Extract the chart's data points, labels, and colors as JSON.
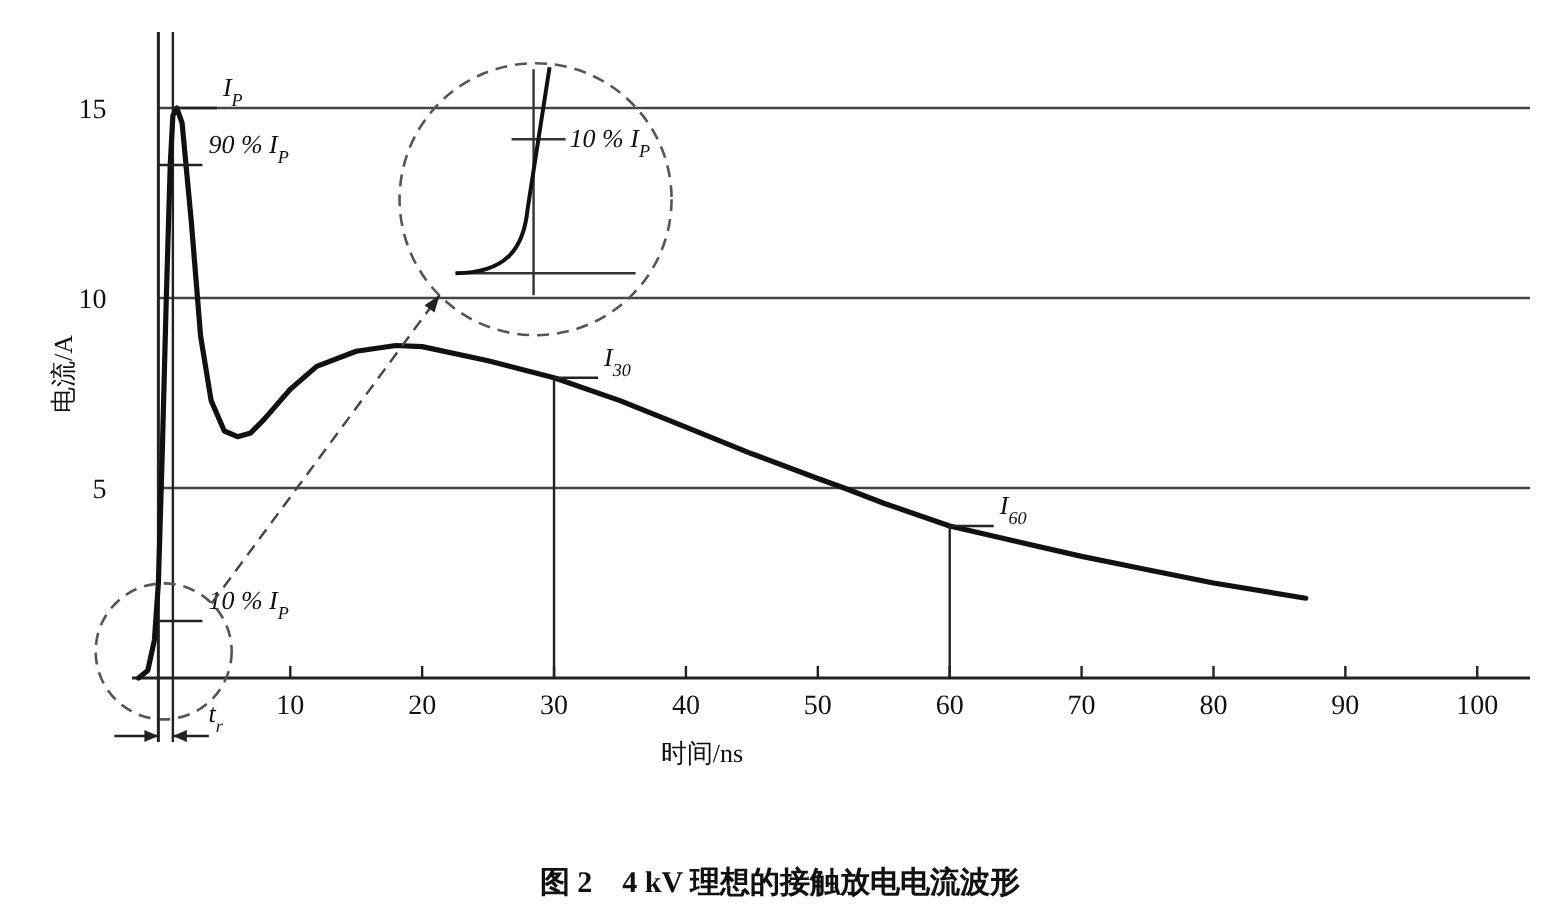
{
  "chart_data": {
    "type": "line",
    "title": "图 2　4 kV 理想的接触放电电流波形",
    "xlabel": "时间/ns",
    "ylabel": "电流/A",
    "series": [
      {
        "color": "#111111",
        "x": [
          -1.5,
          -0.8,
          -0.3,
          0,
          0.3,
          0.6,
          0.9,
          1.1,
          1.4,
          1.8,
          2.5,
          3.2,
          4,
          5,
          6,
          7,
          8,
          10,
          12,
          15,
          18,
          20,
          25,
          30,
          35,
          40,
          45,
          50,
          52,
          55,
          60,
          65,
          70,
          75,
          80,
          87
        ],
        "values": [
          0,
          0.2,
          1,
          2.5,
          6,
          10,
          13.5,
          14.8,
          15,
          14.6,
          12,
          9,
          7.3,
          6.5,
          6.35,
          6.45,
          6.8,
          7.6,
          8.2,
          8.6,
          8.75,
          8.72,
          8.35,
          7.9,
          7.3,
          6.6,
          5.9,
          5.25,
          5,
          4.6,
          4,
          3.6,
          3.2,
          2.85,
          2.5,
          2.1
        ]
      }
    ],
    "xlim": [
      -2,
      104
    ],
    "ylim": [
      0,
      17
    ],
    "xticks": [
      10,
      20,
      30,
      40,
      50,
      60,
      70,
      80,
      90,
      100
    ],
    "yticks": [
      5,
      10,
      15
    ],
    "grid": "y",
    "ref_lines": [
      {
        "axis": "x",
        "value": 1.1
      }
    ],
    "annotations": [
      {
        "text": "I$_{P}$",
        "x": 1.1,
        "y": 15
      },
      {
        "text": "90 % I$_{P}$",
        "x": 0,
        "y": 13.5
      },
      {
        "text": "10 % I$_{P}$",
        "x": 0,
        "y": 1.5
      },
      {
        "text": "I$_{30}$",
        "x": 30,
        "y": 7.9
      },
      {
        "text": "I$_{60}$",
        "x": 60,
        "y": 4
      },
      "10 % I$_{P}$",
      "t$_{r}$"
    ]
  }
}
